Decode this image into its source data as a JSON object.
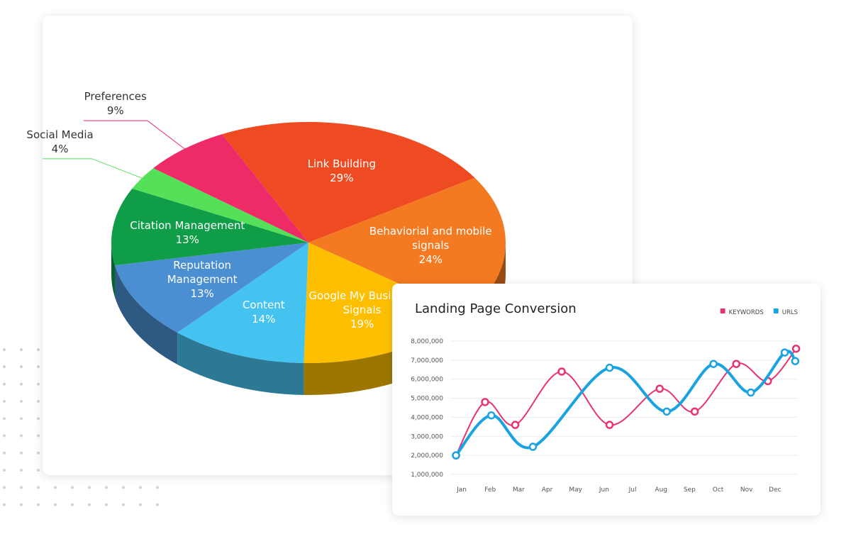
{
  "chart_data": [
    {
      "type": "pie",
      "categories": [
        "Link Building",
        "Behaviorial and mobile signals",
        "Google My Business Signals",
        "Content",
        "Reputation Management",
        "Citation Management",
        "Social Media",
        "Preferences"
      ],
      "values": [
        29,
        24,
        19,
        14,
        13,
        13,
        4,
        9
      ],
      "value_labels": [
        "29%",
        "24%",
        "19%",
        "14%",
        "13%",
        "13%",
        "4%",
        "9%"
      ],
      "colors": [
        "#ef4b22",
        "#f37a21",
        "#fdbf00",
        "#45c3f0",
        "#4a8fd2",
        "#0f9d48",
        "#55e05a",
        "#ee2b66"
      ]
    },
    {
      "type": "line",
      "title": "Landing Page Conversion",
      "categories": [
        "Jan",
        "Feb",
        "Mar",
        "Apr",
        "May",
        "Jun",
        "Jul",
        "Aug",
        "Sep",
        "Oct",
        "Nov",
        "Dec"
      ],
      "series": [
        {
          "name": "KEYWORDS",
          "color": "#e8336f",
          "x": [
            -0.2,
            0.82,
            1.88,
            3.51,
            5.19,
            6.95,
            8.18,
            9.64,
            10.75,
            11.74
          ],
          "values": [
            2000000,
            4800000,
            3600000,
            6400000,
            3600000,
            5500000,
            4300000,
            6800000,
            5900000,
            7600000
          ]
        },
        {
          "name": "URLS",
          "color": "#1aa3e0",
          "x": [
            -0.2,
            1.04,
            2.5,
            5.19,
            7.2,
            8.84,
            10.15,
            11.34,
            11.71
          ],
          "values": [
            2000000,
            4100000,
            2450000,
            6600000,
            4300000,
            6800000,
            5300000,
            7400000,
            6950000
          ]
        }
      ],
      "xlim": [
        -0.4,
        11.8
      ],
      "ylim": [
        1000000,
        8000000
      ],
      "yticks": [
        {
          "value": 1000000,
          "label": "1,000,000"
        },
        {
          "value": 2000000,
          "label": "2,000,000"
        },
        {
          "value": 3000000,
          "label": "3,000,000"
        },
        {
          "value": 4000000,
          "label": "4,000,000"
        },
        {
          "value": 5000000,
          "label": "5,000,000"
        },
        {
          "value": 6000000,
          "label": "6,000,000"
        },
        {
          "value": 7000000,
          "label": "7,000,000"
        },
        {
          "value": 8000000,
          "label": "8,000,000"
        }
      ],
      "grid": true,
      "legend": "top-right"
    }
  ]
}
